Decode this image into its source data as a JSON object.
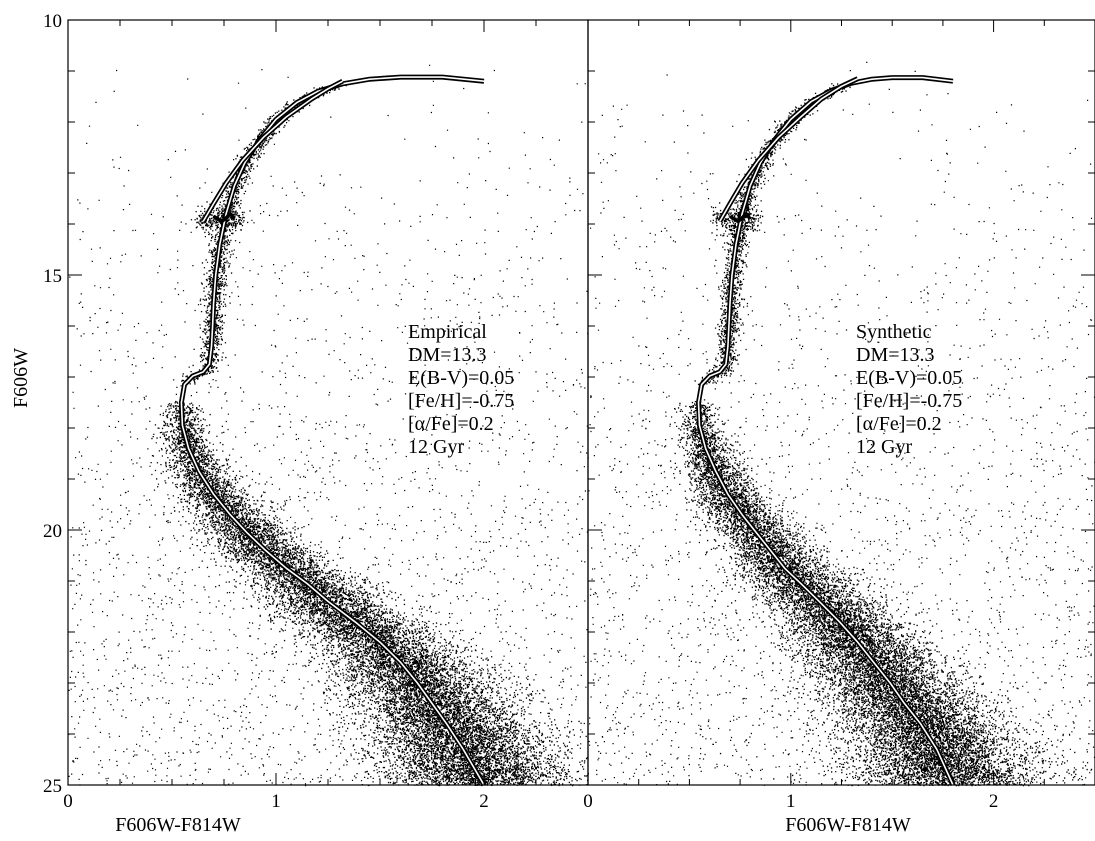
{
  "chart_data": [
    {
      "type": "scatter",
      "panel": "left",
      "xlabel": "F606W-F814W",
      "ylabel": "F606W",
      "xlim": [
        0,
        2.5
      ],
      "ylim": [
        25,
        10
      ],
      "y_inverted": true,
      "xticks": [
        "0",
        "1",
        "2"
      ],
      "yticks": [
        "10",
        "15",
        "20",
        "25"
      ],
      "annotation": [
        "Empirical",
        "DM=13.3",
        "E(B-V)=0.05",
        "[Fe/H]=-0.75",
        "[α/Fe]=0.2",
        "12 Gyr"
      ],
      "series": [
        {
          "kind": "isochrone_main",
          "x": [
            2.0,
            1.9,
            1.82,
            1.75,
            1.68,
            1.6,
            1.5,
            1.38,
            1.25,
            1.15,
            1.05,
            0.95,
            0.86,
            0.78,
            0.7,
            0.63,
            0.58,
            0.55,
            0.545,
            0.56,
            0.6,
            0.65,
            0.68,
            0.69,
            0.695,
            0.7,
            0.71,
            0.73,
            0.76,
            0.8,
            0.85,
            0.92,
            1.0,
            1.1,
            1.2,
            1.32,
            1.45,
            1.6,
            1.8,
            2.0
          ],
          "y": [
            25.0,
            24.3,
            23.8,
            23.4,
            23.0,
            22.6,
            22.2,
            21.8,
            21.4,
            21.05,
            20.75,
            20.4,
            20.05,
            19.7,
            19.3,
            18.85,
            18.4,
            17.95,
            17.5,
            17.15,
            16.98,
            16.9,
            16.75,
            16.4,
            16.0,
            15.55,
            15.0,
            14.4,
            13.8,
            13.25,
            12.8,
            12.35,
            11.95,
            11.62,
            11.4,
            11.25,
            11.16,
            11.12,
            11.12,
            11.2
          ]
        },
        {
          "kind": "isochrone_agb",
          "x": [
            0.65,
            0.7,
            0.76,
            0.84,
            0.94,
            1.05,
            1.17,
            1.25,
            1.32
          ],
          "y": [
            13.95,
            13.6,
            13.2,
            12.75,
            12.3,
            11.9,
            11.55,
            11.35,
            11.2
          ]
        },
        {
          "kind": "horizontal_branch",
          "x": [
            0.7,
            0.72,
            0.74,
            0.76,
            0.78,
            0.8
          ],
          "y": [
            13.85,
            13.9,
            13.95,
            13.88,
            13.8,
            13.9
          ]
        }
      ]
    },
    {
      "type": "scatter",
      "panel": "right",
      "xlabel": "F606W-F814W",
      "ylabel": "",
      "xlim": [
        0,
        2.5
      ],
      "ylim": [
        25,
        10
      ],
      "y_inverted": true,
      "xticks": [
        "0",
        "1",
        "2"
      ],
      "yticks": [],
      "annotation": [
        "Synthetic",
        "DM=13.3",
        "E(B-V)=0.05",
        "[Fe/H]=-0.75",
        "[α/Fe]=0.2",
        "12 Gyr"
      ],
      "series": [
        {
          "kind": "isochrone_main",
          "x": [
            1.8,
            1.72,
            1.64,
            1.56,
            1.49,
            1.41,
            1.33,
            1.24,
            1.14,
            1.05,
            0.97,
            0.9,
            0.83,
            0.76,
            0.69,
            0.63,
            0.58,
            0.55,
            0.545,
            0.56,
            0.6,
            0.65,
            0.68,
            0.69,
            0.695,
            0.7,
            0.71,
            0.73,
            0.76,
            0.8,
            0.85,
            0.92,
            1.0,
            1.1,
            1.2,
            1.3,
            1.4,
            1.5,
            1.65,
            1.8
          ],
          "y": [
            25.0,
            24.3,
            23.8,
            23.4,
            23.0,
            22.6,
            22.2,
            21.8,
            21.4,
            21.05,
            20.75,
            20.4,
            20.05,
            19.7,
            19.3,
            18.85,
            18.4,
            17.95,
            17.5,
            17.15,
            16.98,
            16.9,
            16.75,
            16.4,
            16.0,
            15.55,
            15.0,
            14.4,
            13.8,
            13.25,
            12.8,
            12.35,
            11.95,
            11.6,
            11.38,
            11.24,
            11.16,
            11.13,
            11.13,
            11.2
          ]
        },
        {
          "kind": "isochrone_agb",
          "x": [
            0.65,
            0.7,
            0.76,
            0.84,
            0.94,
            1.05,
            1.15,
            1.25,
            1.33
          ],
          "y": [
            13.95,
            13.6,
            13.2,
            12.75,
            12.3,
            11.9,
            11.55,
            11.3,
            11.15
          ]
        },
        {
          "kind": "horizontal_branch",
          "x": [
            0.7,
            0.72,
            0.74,
            0.76,
            0.78,
            0.8
          ],
          "y": [
            13.85,
            13.9,
            13.95,
            13.88,
            13.8,
            13.9
          ]
        }
      ]
    }
  ]
}
